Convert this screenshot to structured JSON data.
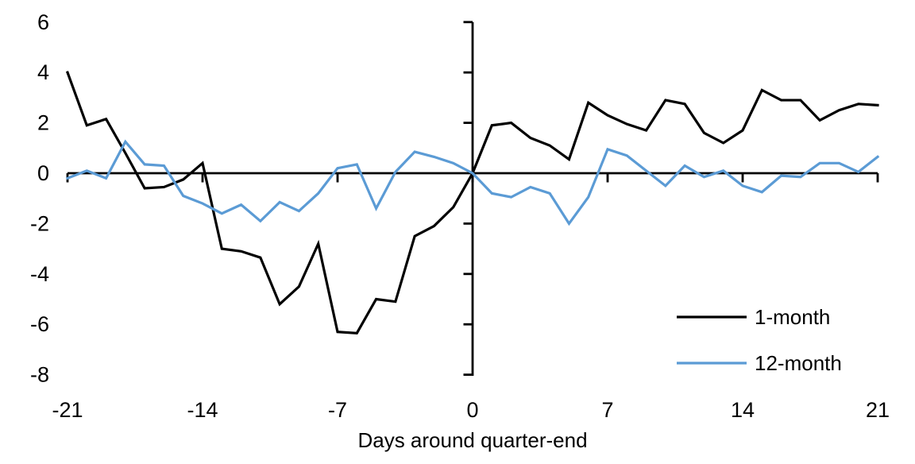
{
  "chart_data": {
    "type": "line",
    "title": "",
    "xlabel": "Days around quarter-end",
    "ylabel": "",
    "xlim": [
      -21,
      21
    ],
    "ylim": [
      -8,
      6
    ],
    "x_ticks": [
      -21,
      -14,
      -7,
      0,
      7,
      14,
      21
    ],
    "y_ticks": [
      6,
      4,
      2,
      0,
      -2,
      -4,
      -6,
      -8
    ],
    "grid": false,
    "legend_position": "bottom-right",
    "axis_color": "#000000",
    "x": [
      -21,
      -20,
      -19,
      -18,
      -17,
      -16,
      -15,
      -14,
      -13,
      -12,
      -11,
      -10,
      -9,
      -8,
      -7,
      -6,
      -5,
      -4,
      -3,
      -2,
      -1,
      0,
      1,
      2,
      3,
      4,
      5,
      6,
      7,
      8,
      9,
      10,
      11,
      12,
      13,
      14,
      15,
      16,
      17,
      18,
      19,
      20,
      21
    ],
    "series": [
      {
        "name": "1-month",
        "color": "#000000",
        "stroke_width": 3.2,
        "values": [
          4.0,
          1.9,
          2.15,
          0.8,
          -0.6,
          -0.55,
          -0.25,
          0.4,
          -3.0,
          -3.1,
          -3.35,
          -5.2,
          -4.5,
          -2.8,
          -6.3,
          -6.35,
          -5.0,
          -5.1,
          -2.5,
          -2.1,
          -1.35,
          0.0,
          1.9,
          2.0,
          1.4,
          1.1,
          0.55,
          2.8,
          2.3,
          1.95,
          1.7,
          2.9,
          2.75,
          1.6,
          1.2,
          1.7,
          3.3,
          2.9,
          2.9,
          2.1,
          2.5,
          2.75,
          2.7
        ]
      },
      {
        "name": "12-month",
        "color": "#5B9BD5",
        "stroke_width": 3.2,
        "values": [
          -0.2,
          0.1,
          -0.2,
          1.25,
          0.35,
          0.3,
          -0.9,
          -1.2,
          -1.6,
          -1.25,
          -1.9,
          -1.15,
          -1.5,
          -0.8,
          0.2,
          0.35,
          -1.4,
          0.05,
          0.85,
          0.65,
          0.4,
          0.0,
          -0.8,
          -0.95,
          -0.55,
          -0.8,
          -2.0,
          -0.95,
          0.95,
          0.7,
          0.1,
          -0.5,
          0.3,
          -0.15,
          0.1,
          -0.5,
          -0.75,
          -0.1,
          -0.15,
          0.4,
          0.4,
          0.05,
          0.65
        ]
      }
    ]
  }
}
